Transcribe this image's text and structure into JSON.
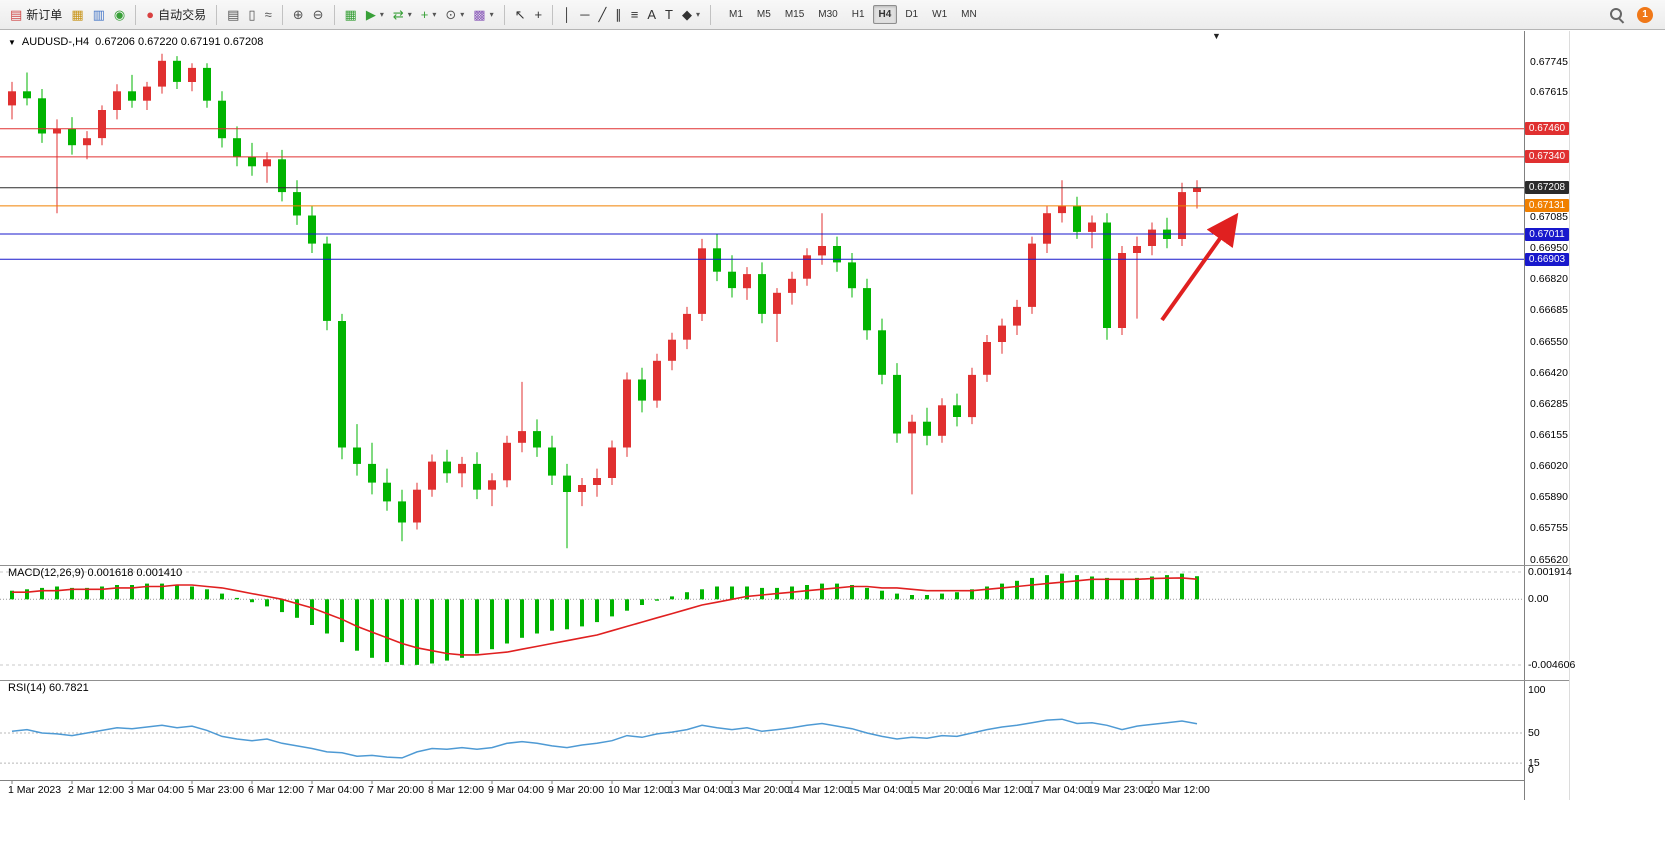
{
  "toolbar": {
    "notification_count": "1",
    "items": [
      {
        "name": "new-order-button",
        "icon": "new-order-icon",
        "glyph": "▤",
        "glyph_color": "#d04848",
        "label": "新订单"
      },
      {
        "name": "market-watch-button",
        "icon": "market-watch-icon",
        "glyph": "▦",
        "glyph_color": "#c89418"
      },
      {
        "name": "data-window-button",
        "icon": "data-window-icon",
        "glyph": "▥",
        "glyph_color": "#4878c8"
      },
      {
        "name": "terminal-button",
        "icon": "terminal-icon",
        "glyph": "◉",
        "glyph_color": "#38a038"
      },
      {
        "sep": true
      },
      {
        "name": "autotrading-button",
        "icon": "autotrading-icon",
        "glyph": "●",
        "glyph_color": "#d84040",
        "label": "自动交易"
      },
      {
        "sep": true
      },
      {
        "name": "bar-chart-button",
        "icon": "bar-chart-icon",
        "glyph": "▤",
        "glyph_color": "#555555"
      },
      {
        "name": "candlestick-chart-button",
        "icon": "candlestick-icon",
        "glyph": "▯",
        "glyph_color": "#555555"
      },
      {
        "name": "line-chart-button",
        "icon": "line-chart-icon",
        "glyph": "≈",
        "glyph_color": "#555555"
      },
      {
        "sep": true
      },
      {
        "name": "zoom-in-button",
        "icon": "zoom-in-icon",
        "glyph": "⊕",
        "glyph_color": "#555555"
      },
      {
        "name": "zoom-out-button",
        "icon": "zoom-out-icon",
        "glyph": "⊖",
        "glyph_color": "#555555"
      },
      {
        "sep": true
      },
      {
        "name": "tile-windows-button",
        "icon": "tile-windows-icon",
        "glyph": "▦",
        "glyph_color": "#38a038"
      },
      {
        "name": "auto-scroll-button",
        "icon": "auto-scroll-icon",
        "glyph": "▶",
        "glyph_color": "#38a038",
        "caret": true
      },
      {
        "name": "chart-shift-button",
        "icon": "chart-shift-icon",
        "glyph": "⇄",
        "glyph_color": "#38a038",
        "caret": true
      },
      {
        "name": "indicators-button",
        "icon": "add-indicator-icon",
        "glyph": "+",
        "glyph_color": "#38a038",
        "caret": true
      },
      {
        "name": "periods-button",
        "icon": "clock-icon",
        "glyph": "⊙",
        "glyph_color": "#555555",
        "caret": true
      },
      {
        "name": "templates-button",
        "icon": "template-icon",
        "glyph": "▩",
        "glyph_color": "#8858b8",
        "caret": true
      },
      {
        "sep": true
      },
      {
        "name": "cursor-button",
        "icon": "cursor-icon",
        "glyph": "↖",
        "glyph_color": "#333333"
      },
      {
        "name": "crosshair-button",
        "icon": "crosshair-icon",
        "glyph": "+",
        "glyph_color": "#333333"
      },
      {
        "sep": true
      },
      {
        "name": "vertical-line-button",
        "icon": "vertical-line-icon",
        "glyph": "│",
        "glyph_color": "#333333"
      },
      {
        "name": "horizontal-line-button",
        "icon": "horizontal-line-icon",
        "glyph": "─",
        "glyph_color": "#333333"
      },
      {
        "name": "trendline-button",
        "icon": "trendline-icon",
        "glyph": "╱",
        "glyph_color": "#333333"
      },
      {
        "name": "channel-button",
        "icon": "channel-icon",
        "glyph": "∥",
        "glyph_color": "#333333"
      },
      {
        "name": "fibonacci-button",
        "icon": "fibonacci-icon",
        "glyph": "≡",
        "glyph_color": "#333333"
      },
      {
        "name": "text-button",
        "icon": "text-icon",
        "glyph": "A",
        "glyph_color": "#333333"
      },
      {
        "name": "label-button",
        "icon": "label-icon",
        "glyph": "T",
        "glyph_color": "#333333"
      },
      {
        "name": "shapes-button",
        "icon": "shapes-icon",
        "glyph": "◆",
        "glyph_color": "#333333",
        "caret": true
      },
      {
        "sep": true
      }
    ],
    "timeframes": {
      "items": [
        "M1",
        "M5",
        "M15",
        "M30",
        "H1",
        "H4",
        "D1",
        "W1",
        "MN"
      ],
      "active": "H4"
    }
  },
  "icons": {
    "collapse_caret": "▼",
    "end_marker": "▼",
    "caret_down": "▾"
  },
  "chart": {
    "title": {
      "symbol": "AUDUSD-,H4",
      "ohlc": "0.67206 0.67220 0.67191 0.67208"
    }
  },
  "colors": {
    "up": "#e03030",
    "down": "#00b400",
    "macd_hist": "#00b400",
    "macd_signal": "#e02020",
    "rsi_line": "#4e9ad4",
    "arrow": "#e02020"
  },
  "chart_data": {
    "type": "candlestick",
    "symbol": "AUDUSD-",
    "timeframe": "H4",
    "ohlc_current": {
      "open": 0.67206,
      "high": 0.6722,
      "low": 0.67191,
      "close": 0.67208
    },
    "ylim": [
      0.6562,
      0.6778
    ],
    "y_ticks": [
      "0.67745",
      "0.67615",
      "0.67085",
      "0.66950",
      "0.66820",
      "0.66685",
      "0.66550",
      "0.66420",
      "0.66285",
      "0.66155",
      "0.66020",
      "0.65890",
      "0.65755",
      "0.65620"
    ],
    "x_labels": [
      "1 Mar 2023",
      "2 Mar 12:00",
      "3 Mar 04:00",
      "5 Mar 23:00",
      "6 Mar 12:00",
      "7 Mar 04:00",
      "7 Mar 20:00",
      "8 Mar 12:00",
      "9 Mar 04:00",
      "9 Mar 20:00",
      "10 Mar 12:00",
      "13 Mar 04:00",
      "13 Mar 20:00",
      "14 Mar 12:00",
      "15 Mar 04:00",
      "15 Mar 20:00",
      "16 Mar 12:00",
      "17 Mar 04:00",
      "19 Mar 23:00",
      "20 Mar 12:00"
    ],
    "horizontal_lines": [
      {
        "price": 0.6746,
        "label": "0.67460",
        "color": "#e03030",
        "type": "resistance"
      },
      {
        "price": 0.6734,
        "label": "0.67340",
        "color": "#e03030",
        "type": "resistance"
      },
      {
        "price": 0.67208,
        "label": "0.67208",
        "color": "#2b2b2b",
        "type": "current-price"
      },
      {
        "price": 0.67131,
        "label": "0.67131",
        "color": "#f08000",
        "type": "level"
      },
      {
        "price": 0.67011,
        "label": "0.67011",
        "color": "#1818cc",
        "type": "support"
      },
      {
        "price": 0.66903,
        "label": "0.66903",
        "color": "#1818cc",
        "type": "support"
      }
    ],
    "annotations": [
      {
        "type": "arrow",
        "direction": "up-right",
        "color": "#e02020"
      }
    ],
    "candles": [
      [
        0.6756,
        0.6766,
        0.675,
        0.6762
      ],
      [
        0.6762,
        0.677,
        0.6756,
        0.6759
      ],
      [
        0.6759,
        0.6763,
        0.674,
        0.6744
      ],
      [
        0.6744,
        0.675,
        0.671,
        0.6746
      ],
      [
        0.6746,
        0.6751,
        0.6735,
        0.6739
      ],
      [
        0.6739,
        0.6745,
        0.6733,
        0.6742
      ],
      [
        0.6742,
        0.6756,
        0.6739,
        0.6754
      ],
      [
        0.6754,
        0.6765,
        0.675,
        0.6762
      ],
      [
        0.6762,
        0.6769,
        0.6755,
        0.6758
      ],
      [
        0.6758,
        0.6766,
        0.6754,
        0.6764
      ],
      [
        0.6764,
        0.6778,
        0.6761,
        0.6775
      ],
      [
        0.6775,
        0.6777,
        0.6763,
        0.6766
      ],
      [
        0.6766,
        0.6774,
        0.6762,
        0.6772
      ],
      [
        0.6772,
        0.6774,
        0.6755,
        0.6758
      ],
      [
        0.6758,
        0.6762,
        0.6738,
        0.6742
      ],
      [
        0.6742,
        0.6747,
        0.673,
        0.6734
      ],
      [
        0.6734,
        0.674,
        0.6726,
        0.673
      ],
      [
        0.673,
        0.6736,
        0.6723,
        0.6733
      ],
      [
        0.6733,
        0.6737,
        0.6715,
        0.6719
      ],
      [
        0.6719,
        0.6724,
        0.6705,
        0.6709
      ],
      [
        0.6709,
        0.6713,
        0.6693,
        0.6697
      ],
      [
        0.6697,
        0.67,
        0.666,
        0.6664
      ],
      [
        0.6664,
        0.6667,
        0.6605,
        0.661
      ],
      [
        0.661,
        0.662,
        0.6598,
        0.6603
      ],
      [
        0.6603,
        0.6612,
        0.659,
        0.6595
      ],
      [
        0.6595,
        0.6601,
        0.6583,
        0.6587
      ],
      [
        0.6587,
        0.6592,
        0.657,
        0.6578
      ],
      [
        0.6578,
        0.6595,
        0.6575,
        0.6592
      ],
      [
        0.6592,
        0.6607,
        0.6589,
        0.6604
      ],
      [
        0.6604,
        0.6609,
        0.6595,
        0.6599
      ],
      [
        0.6599,
        0.6606,
        0.6593,
        0.6603
      ],
      [
        0.6603,
        0.6608,
        0.6588,
        0.6592
      ],
      [
        0.6592,
        0.6599,
        0.6585,
        0.6596
      ],
      [
        0.6596,
        0.6615,
        0.6593,
        0.6612
      ],
      [
        0.6612,
        0.6638,
        0.6608,
        0.6617
      ],
      [
        0.6617,
        0.6622,
        0.6606,
        0.661
      ],
      [
        0.661,
        0.6615,
        0.6594,
        0.6598
      ],
      [
        0.6598,
        0.6603,
        0.6567,
        0.6591
      ],
      [
        0.6591,
        0.6597,
        0.6585,
        0.6594
      ],
      [
        0.6594,
        0.6601,
        0.6589,
        0.6597
      ],
      [
        0.6597,
        0.6613,
        0.6594,
        0.661
      ],
      [
        0.661,
        0.6642,
        0.6606,
        0.6639
      ],
      [
        0.6639,
        0.6644,
        0.6625,
        0.663
      ],
      [
        0.663,
        0.665,
        0.6627,
        0.6647
      ],
      [
        0.6647,
        0.6659,
        0.6643,
        0.6656
      ],
      [
        0.6656,
        0.667,
        0.6652,
        0.6667
      ],
      [
        0.6667,
        0.6699,
        0.6664,
        0.6695
      ],
      [
        0.6695,
        0.6701,
        0.6681,
        0.6685
      ],
      [
        0.6685,
        0.6692,
        0.6674,
        0.6678
      ],
      [
        0.6678,
        0.6687,
        0.6673,
        0.6684
      ],
      [
        0.6684,
        0.6689,
        0.6663,
        0.6667
      ],
      [
        0.6667,
        0.6678,
        0.6655,
        0.6676
      ],
      [
        0.6676,
        0.6685,
        0.6671,
        0.6682
      ],
      [
        0.6682,
        0.6695,
        0.6679,
        0.6692
      ],
      [
        0.6692,
        0.671,
        0.6688,
        0.6696
      ],
      [
        0.6696,
        0.67,
        0.6685,
        0.6689
      ],
      [
        0.6689,
        0.6693,
        0.6674,
        0.6678
      ],
      [
        0.6678,
        0.6682,
        0.6656,
        0.666
      ],
      [
        0.666,
        0.6665,
        0.6637,
        0.6641
      ],
      [
        0.6641,
        0.6646,
        0.6612,
        0.6616
      ],
      [
        0.6616,
        0.6624,
        0.659,
        0.6621
      ],
      [
        0.6621,
        0.6627,
        0.6611,
        0.6615
      ],
      [
        0.6615,
        0.6631,
        0.6612,
        0.6628
      ],
      [
        0.6628,
        0.6633,
        0.6619,
        0.6623
      ],
      [
        0.6623,
        0.6644,
        0.662,
        0.6641
      ],
      [
        0.6641,
        0.6658,
        0.6638,
        0.6655
      ],
      [
        0.6655,
        0.6665,
        0.665,
        0.6662
      ],
      [
        0.6662,
        0.6673,
        0.6658,
        0.667
      ],
      [
        0.667,
        0.67,
        0.6667,
        0.6697
      ],
      [
        0.6697,
        0.6713,
        0.6693,
        0.671
      ],
      [
        0.671,
        0.6724,
        0.6706,
        0.6713
      ],
      [
        0.6713,
        0.6717,
        0.6699,
        0.6702
      ],
      [
        0.6702,
        0.6709,
        0.6695,
        0.6706
      ],
      [
        0.6706,
        0.671,
        0.6656,
        0.6661
      ],
      [
        0.6661,
        0.6696,
        0.6658,
        0.6693
      ],
      [
        0.6693,
        0.67,
        0.6665,
        0.6696
      ],
      [
        0.6696,
        0.6706,
        0.6692,
        0.6703
      ],
      [
        0.6703,
        0.6708,
        0.6695,
        0.6699
      ],
      [
        0.6699,
        0.6723,
        0.6696,
        0.6719
      ],
      [
        0.6719,
        0.6724,
        0.6712,
        0.67208
      ]
    ],
    "indicators": {
      "macd": {
        "label": "MACD(12,26,9) 0.001618 0.001410",
        "current": {
          "macd": 0.001618,
          "signal": 0.00141
        },
        "axis_ticks": [
          {
            "v": 0.001914,
            "label": "0.001914"
          },
          {
            "v": 0,
            "label": "0.00"
          },
          {
            "v": -0.004606,
            "label": "-0.004606"
          }
        ],
        "histogram": [
          0.0006,
          0.0007,
          0.0008,
          0.0009,
          0.0008,
          0.0008,
          0.0009,
          0.001,
          0.001,
          0.0011,
          0.0011,
          0.001,
          0.0009,
          0.0007,
          0.0004,
          0.0001,
          -0.0002,
          -0.0005,
          -0.0009,
          -0.0013,
          -0.0018,
          -0.0024,
          -0.003,
          -0.0036,
          -0.0041,
          -0.0044,
          -0.0046,
          -0.0046,
          -0.0045,
          -0.0043,
          -0.0041,
          -0.0038,
          -0.0035,
          -0.0031,
          -0.0027,
          -0.0024,
          -0.0022,
          -0.0021,
          -0.0019,
          -0.0016,
          -0.0012,
          -0.0008,
          -0.0004,
          -0.0001,
          0.0002,
          0.0005,
          0.0007,
          0.0009,
          0.0009,
          0.0009,
          0.0008,
          0.0008,
          0.0009,
          0.001,
          0.0011,
          0.0011,
          0.001,
          0.0008,
          0.0006,
          0.0004,
          0.0003,
          0.0003,
          0.0004,
          0.0005,
          0.0007,
          0.0009,
          0.0011,
          0.0013,
          0.0015,
          0.0017,
          0.0018,
          0.0017,
          0.0016,
          0.0015,
          0.0014,
          0.0015,
          0.0016,
          0.0017,
          0.0018,
          0.001618
        ],
        "signal": [
          0.0005,
          0.0005,
          0.0006,
          0.0006,
          0.0007,
          0.0007,
          0.0007,
          0.0008,
          0.0008,
          0.0009,
          0.0009,
          0.001,
          0.001,
          0.0009,
          0.0008,
          0.0006,
          0.0004,
          0.0002,
          0,
          -0.0003,
          -0.0006,
          -0.001,
          -0.0014,
          -0.0019,
          -0.0023,
          -0.0027,
          -0.0031,
          -0.0034,
          -0.0036,
          -0.0038,
          -0.0039,
          -0.0039,
          -0.0038,
          -0.0037,
          -0.0035,
          -0.0033,
          -0.0031,
          -0.0029,
          -0.0027,
          -0.0025,
          -0.0022,
          -0.0019,
          -0.0016,
          -0.0013,
          -0.001,
          -0.0007,
          -0.0004,
          -0.0002,
          0,
          0.0002,
          0.0003,
          0.0004,
          0.0005,
          0.0006,
          0.0007,
          0.0008,
          0.0009,
          0.0009,
          0.0008,
          0.0008,
          0.0007,
          0.0006,
          0.0006,
          0.0006,
          0.0006,
          0.0007,
          0.0008,
          0.0009,
          0.001,
          0.0011,
          0.0012,
          0.0013,
          0.0014,
          0.0014,
          0.0014,
          0.0014,
          0.00145,
          0.00148,
          0.0015,
          0.00141
        ]
      },
      "rsi": {
        "label": "RSI(14) 60.7821",
        "current": 60.7821,
        "axis_ticks": [
          {
            "v": 100,
            "label": "100"
          },
          {
            "v": 50,
            "label": "50"
          },
          {
            "v": 15,
            "label": "15"
          },
          {
            "v": 0,
            "label": "0"
          }
        ],
        "levels": [
          50,
          15
        ],
        "values": [
          52,
          54,
          50,
          49,
          47,
          50,
          53,
          56,
          55,
          57,
          59,
          56,
          58,
          53,
          46,
          43,
          41,
          43,
          38,
          35,
          32,
          28,
          27,
          23,
          24,
          22,
          21,
          28,
          32,
          31,
          33,
          31,
          33,
          38,
          40,
          38,
          35,
          33,
          36,
          38,
          41,
          47,
          45,
          49,
          51,
          54,
          59,
          56,
          54,
          56,
          52,
          54,
          56,
          59,
          61,
          58,
          55,
          50,
          46,
          43,
          45,
          44,
          47,
          46,
          50,
          54,
          57,
          59,
          62,
          65,
          66,
          61,
          62,
          59,
          54,
          58,
          60,
          62,
          64,
          60.78
        ]
      }
    }
  }
}
